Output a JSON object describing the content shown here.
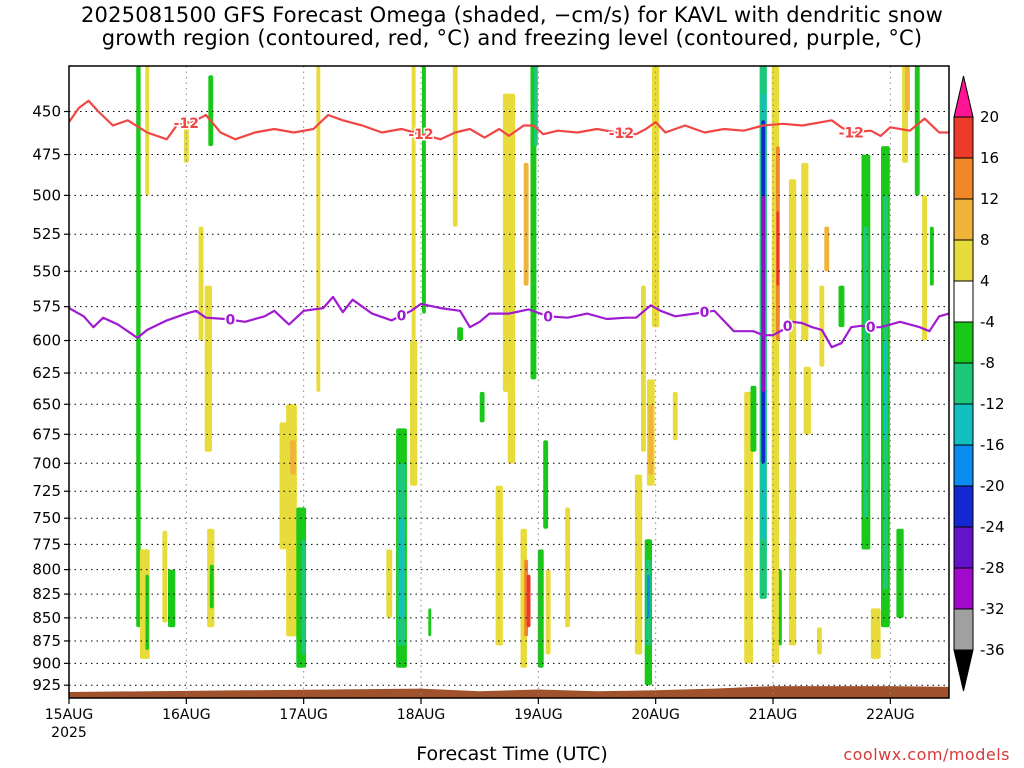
{
  "title": {
    "line1": "2025081500 GFS Forecast Omega (shaded, −cm/s) for KAVL with dendritic snow",
    "line2": "growth region (contoured, red, °C) and freezing level (contoured, purple, °C)"
  },
  "credit": "coolwx.com/models",
  "chart_data": {
    "type": "heatmap",
    "title": "2025081500 GFS Forecast Omega (shaded, −cm/s) for KAVL with dendritic snow growth region (contoured, red, °C) and freezing level (contoured, purple, °C)",
    "xlabel": "Forecast Time (UTC)",
    "ylabel": "",
    "y_scale": "log-pressure",
    "ylim": [
      940,
      425
    ],
    "y_ticks": [
      450,
      475,
      500,
      525,
      550,
      575,
      600,
      625,
      650,
      675,
      700,
      725,
      750,
      775,
      800,
      825,
      850,
      875,
      900,
      925
    ],
    "x_start_hour": 0,
    "x_end_hour": 180,
    "x_ticks": [
      {
        "hour": 0,
        "label": "15AUG",
        "sublabel": "2025"
      },
      {
        "hour": 24,
        "label": "16AUG"
      },
      {
        "hour": 48,
        "label": "17AUG"
      },
      {
        "hour": 72,
        "label": "18AUG"
      },
      {
        "hour": 96,
        "label": "19AUG"
      },
      {
        "hour": 120,
        "label": "20AUG"
      },
      {
        "hour": 144,
        "label": "21AUG"
      },
      {
        "hour": 168,
        "label": "22AUG"
      }
    ],
    "grid": true,
    "colorbar": {
      "levels": [
        20,
        16,
        12,
        8,
        4,
        -4,
        -8,
        -12,
        -16,
        -20,
        -24,
        -28,
        -32,
        -36
      ],
      "colors": [
        "#ff1493",
        "#ee3a2a",
        "#f0882a",
        "#f0b43a",
        "#e8dc3c",
        "#ffffff",
        "#19c819",
        "#1ec87a",
        "#13c0c0",
        "#0a8cf0",
        "#1428d2",
        "#6414c8",
        "#a00ac8",
        "#a0a0a0",
        "#000000"
      ]
    },
    "dendritic_contour": {
      "color": "#f04646",
      "value": -12,
      "label": "-12",
      "label_hours": [
        24,
        72,
        113,
        160
      ],
      "points": [
        [
          0,
          456
        ],
        [
          2,
          448
        ],
        [
          4,
          444
        ],
        [
          6,
          450
        ],
        [
          9,
          458
        ],
        [
          12,
          455
        ],
        [
          16,
          462
        ],
        [
          20,
          466
        ],
        [
          22,
          458
        ],
        [
          26,
          455
        ],
        [
          28,
          452
        ],
        [
          31,
          462
        ],
        [
          34,
          466
        ],
        [
          38,
          462
        ],
        [
          42,
          460
        ],
        [
          46,
          462
        ],
        [
          50,
          460
        ],
        [
          53,
          452
        ],
        [
          56,
          455
        ],
        [
          60,
          458
        ],
        [
          64,
          462
        ],
        [
          68,
          460
        ],
        [
          72,
          463
        ],
        [
          76,
          466
        ],
        [
          79,
          462
        ],
        [
          82,
          460
        ],
        [
          85,
          465
        ],
        [
          88,
          460
        ],
        [
          90,
          464
        ],
        [
          93,
          458
        ],
        [
          95,
          458
        ],
        [
          97,
          463
        ],
        [
          100,
          461
        ],
        [
          104,
          462
        ],
        [
          108,
          460
        ],
        [
          112,
          462
        ],
        [
          116,
          463
        ],
        [
          118,
          460
        ],
        [
          120,
          456
        ],
        [
          122,
          462
        ],
        [
          126,
          458
        ],
        [
          130,
          462
        ],
        [
          134,
          460
        ],
        [
          138,
          461
        ],
        [
          142,
          458
        ],
        [
          146,
          457
        ],
        [
          150,
          458
        ],
        [
          154,
          456
        ],
        [
          156,
          455
        ],
        [
          158,
          459
        ],
        [
          160,
          462
        ],
        [
          164,
          461
        ],
        [
          166,
          464
        ],
        [
          168,
          459
        ],
        [
          172,
          461
        ],
        [
          175,
          454
        ],
        [
          178,
          462
        ],
        [
          180,
          462
        ]
      ]
    },
    "freezing_contour": {
      "color": "#a01ad2",
      "value": 0,
      "label": "0",
      "label_hours": [
        33,
        68,
        98,
        130,
        147,
        164
      ],
      "points": [
        [
          0,
          576
        ],
        [
          3,
          582
        ],
        [
          5,
          590
        ],
        [
          7,
          583
        ],
        [
          10,
          588
        ],
        [
          14,
          598
        ],
        [
          16,
          592
        ],
        [
          20,
          585
        ],
        [
          24,
          580
        ],
        [
          26,
          578
        ],
        [
          28,
          583
        ],
        [
          32,
          584
        ],
        [
          36,
          586
        ],
        [
          40,
          582
        ],
        [
          42,
          578
        ],
        [
          45,
          588
        ],
        [
          48,
          578
        ],
        [
          52,
          576
        ],
        [
          54,
          568
        ],
        [
          56,
          579
        ],
        [
          58,
          570
        ],
        [
          62,
          580
        ],
        [
          66,
          585
        ],
        [
          70,
          578
        ],
        [
          72,
          573
        ],
        [
          76,
          576
        ],
        [
          80,
          578
        ],
        [
          82,
          590
        ],
        [
          84,
          586
        ],
        [
          86,
          580
        ],
        [
          90,
          580
        ],
        [
          94,
          577
        ],
        [
          98,
          582
        ],
        [
          102,
          583
        ],
        [
          106,
          580
        ],
        [
          110,
          584
        ],
        [
          114,
          583
        ],
        [
          116,
          583
        ],
        [
          119,
          574
        ],
        [
          121,
          578
        ],
        [
          124,
          582
        ],
        [
          128,
          580
        ],
        [
          132,
          578
        ],
        [
          136,
          593
        ],
        [
          140,
          593
        ],
        [
          142,
          596
        ],
        [
          144,
          596
        ],
        [
          146,
          592
        ],
        [
          148,
          586
        ],
        [
          150,
          587
        ],
        [
          152,
          590
        ],
        [
          154,
          592
        ],
        [
          156,
          605
        ],
        [
          158,
          602
        ],
        [
          160,
          590
        ],
        [
          162,
          589
        ],
        [
          164,
          590
        ],
        [
          166,
          590
        ],
        [
          170,
          586
        ],
        [
          174,
          590
        ],
        [
          176,
          593
        ],
        [
          178,
          582
        ],
        [
          180,
          580
        ]
      ]
    },
    "terrain": {
      "color": "#a0522d",
      "surface_hpa": [
        [
          0,
          933
        ],
        [
          36,
          931
        ],
        [
          72,
          929
        ],
        [
          84,
          932
        ],
        [
          96,
          930
        ],
        [
          108,
          932
        ],
        [
          120,
          931
        ],
        [
          132,
          929
        ],
        [
          144,
          926
        ],
        [
          168,
          926
        ],
        [
          180,
          927
        ]
      ]
    },
    "omega_cells": [
      {
        "h": 14.2,
        "dh": 0.9,
        "p1": 425,
        "p2": 860,
        "v": -6
      },
      {
        "h": 16.0,
        "dh": 0.8,
        "p1": 425,
        "p2": 500,
        "v": 4
      },
      {
        "h": 15.5,
        "dh": 2.0,
        "p1": 780,
        "p2": 895,
        "v": 4
      },
      {
        "h": 16.0,
        "dh": 0.7,
        "p1": 805,
        "p2": 885,
        "v": -6
      },
      {
        "h": 19.6,
        "dh": 1.0,
        "p1": 762,
        "p2": 855,
        "v": 4
      },
      {
        "h": 21.0,
        "dh": 1.5,
        "p1": 800,
        "p2": 860,
        "v": -6
      },
      {
        "h": 24.0,
        "dh": 1.0,
        "p1": 455,
        "p2": 480,
        "v": 4
      },
      {
        "h": 27.0,
        "dh": 1.0,
        "p1": 520,
        "p2": 600,
        "v": 4
      },
      {
        "h": 28.5,
        "dh": 1.5,
        "p1": 560,
        "p2": 690,
        "v": 4
      },
      {
        "h": 29.0,
        "dh": 1.0,
        "p1": 430,
        "p2": 470,
        "v": -6
      },
      {
        "h": 29.0,
        "dh": 1.5,
        "p1": 760,
        "p2": 860,
        "v": 4
      },
      {
        "h": 29.2,
        "dh": 0.8,
        "p1": 795,
        "p2": 840,
        "v": -6
      },
      {
        "h": 43.8,
        "dh": 1.5,
        "p1": 665,
        "p2": 780,
        "v": 4
      },
      {
        "h": 45.5,
        "dh": 2.2,
        "p1": 650,
        "p2": 870,
        "v": 4
      },
      {
        "h": 45.8,
        "dh": 1.2,
        "p1": 680,
        "p2": 710,
        "v": 8
      },
      {
        "h": 47.5,
        "dh": 2.0,
        "p1": 740,
        "p2": 905,
        "v": -6
      },
      {
        "h": 48.0,
        "dh": 0.8,
        "p1": 770,
        "p2": 890,
        "v": -10
      },
      {
        "h": 51.0,
        "dh": 0.8,
        "p1": 425,
        "p2": 640,
        "v": 4
      },
      {
        "h": 65.5,
        "dh": 1.2,
        "p1": 780,
        "p2": 850,
        "v": 4
      },
      {
        "h": 68.0,
        "dh": 2.2,
        "p1": 670,
        "p2": 905,
        "v": -6
      },
      {
        "h": 68.0,
        "dh": 1.6,
        "p1": 700,
        "p2": 880,
        "v": -12
      },
      {
        "h": 68.0,
        "dh": 0.8,
        "p1": 750,
        "p2": 850,
        "v": -16
      },
      {
        "h": 70.5,
        "dh": 1.5,
        "p1": 600,
        "p2": 720,
        "v": 4
      },
      {
        "h": 70.5,
        "dh": 0.8,
        "p1": 425,
        "p2": 600,
        "v": 4
      },
      {
        "h": 72.6,
        "dh": 0.8,
        "p1": 425,
        "p2": 580,
        "v": -6
      },
      {
        "h": 73.8,
        "dh": 0.6,
        "p1": 840,
        "p2": 870,
        "v": -6
      },
      {
        "h": 79.0,
        "dh": 1.0,
        "p1": 425,
        "p2": 520,
        "v": 4
      },
      {
        "h": 80.0,
        "dh": 1.2,
        "p1": 590,
        "p2": 600,
        "v": -6
      },
      {
        "h": 84.5,
        "dh": 1.0,
        "p1": 640,
        "p2": 665,
        "v": -6
      },
      {
        "h": 88.0,
        "dh": 1.5,
        "p1": 720,
        "p2": 880,
        "v": 4
      },
      {
        "h": 90.0,
        "dh": 2.5,
        "p1": 440,
        "p2": 640,
        "v": 4
      },
      {
        "h": 90.5,
        "dh": 1.5,
        "p1": 620,
        "p2": 700,
        "v": 4
      },
      {
        "h": 93.0,
        "dh": 1.3,
        "p1": 760,
        "p2": 905,
        "v": 4
      },
      {
        "h": 93.5,
        "dh": 1.0,
        "p1": 480,
        "p2": 560,
        "v": 8
      },
      {
        "h": 93.5,
        "dh": 0.8,
        "p1": 790,
        "p2": 870,
        "v": 12
      },
      {
        "h": 94.0,
        "dh": 0.8,
        "p1": 805,
        "p2": 860,
        "v": 16
      },
      {
        "h": 95.0,
        "dh": 1.2,
        "p1": 425,
        "p2": 630,
        "v": -6
      },
      {
        "h": 95.5,
        "dh": 0.8,
        "p1": 425,
        "p2": 470,
        "v": -10
      },
      {
        "h": 96.5,
        "dh": 1.2,
        "p1": 780,
        "p2": 905,
        "v": -6
      },
      {
        "h": 97.5,
        "dh": 1.0,
        "p1": 680,
        "p2": 760,
        "v": -6
      },
      {
        "h": 98.0,
        "dh": 1.0,
        "p1": 800,
        "p2": 890,
        "v": 4
      },
      {
        "h": 102.0,
        "dh": 1.0,
        "p1": 740,
        "p2": 860,
        "v": 4
      },
      {
        "h": 116.5,
        "dh": 1.5,
        "p1": 710,
        "p2": 890,
        "v": 4
      },
      {
        "h": 117.5,
        "dh": 1.0,
        "p1": 560,
        "p2": 690,
        "v": 4
      },
      {
        "h": 119.0,
        "dh": 1.6,
        "p1": 630,
        "p2": 720,
        "v": 4
      },
      {
        "h": 119.0,
        "dh": 1.0,
        "p1": 650,
        "p2": 710,
        "v": 8
      },
      {
        "h": 120.0,
        "dh": 1.5,
        "p1": 425,
        "p2": 590,
        "v": 4
      },
      {
        "h": 118.5,
        "dh": 1.5,
        "p1": 770,
        "p2": 925,
        "v": -6
      },
      {
        "h": 118.5,
        "dh": 1.0,
        "p1": 790,
        "p2": 880,
        "v": -12
      },
      {
        "h": 118.5,
        "dh": 0.6,
        "p1": 805,
        "p2": 850,
        "v": -20
      },
      {
        "h": 124.0,
        "dh": 1.0,
        "p1": 640,
        "p2": 680,
        "v": 4
      },
      {
        "h": 139.0,
        "dh": 1.8,
        "p1": 640,
        "p2": 900,
        "v": 4
      },
      {
        "h": 140.0,
        "dh": 1.2,
        "p1": 635,
        "p2": 690,
        "v": -6
      },
      {
        "h": 142.0,
        "dh": 1.5,
        "p1": 425,
        "p2": 830,
        "v": -12
      },
      {
        "h": 142.0,
        "dh": 1.0,
        "p1": 440,
        "p2": 770,
        "v": -16
      },
      {
        "h": 142.0,
        "dh": 0.8,
        "p1": 455,
        "p2": 700,
        "v": -24
      },
      {
        "h": 142.0,
        "dh": 0.7,
        "p1": 500,
        "p2": 640,
        "v": -32
      },
      {
        "h": 144.5,
        "dh": 1.5,
        "p1": 425,
        "p2": 900,
        "v": 4
      },
      {
        "h": 145.0,
        "dh": 0.8,
        "p1": 470,
        "p2": 600,
        "v": 12
      },
      {
        "h": 145.0,
        "dh": 0.6,
        "p1": 510,
        "p2": 560,
        "v": 16
      },
      {
        "h": 145.5,
        "dh": 0.6,
        "p1": 800,
        "p2": 880,
        "v": -6
      },
      {
        "h": 148.0,
        "dh": 1.5,
        "p1": 490,
        "p2": 880,
        "v": 4
      },
      {
        "h": 150.5,
        "dh": 1.5,
        "p1": 480,
        "p2": 600,
        "v": 4
      },
      {
        "h": 151.0,
        "dh": 1.5,
        "p1": 620,
        "p2": 675,
        "v": 4
      },
      {
        "h": 153.5,
        "dh": 1.0,
        "p1": 860,
        "p2": 890,
        "v": 4
      },
      {
        "h": 154.0,
        "dh": 1.0,
        "p1": 560,
        "p2": 620,
        "v": 4
      },
      {
        "h": 155.0,
        "dh": 1.0,
        "p1": 520,
        "p2": 550,
        "v": 8
      },
      {
        "h": 158.0,
        "dh": 1.2,
        "p1": 560,
        "p2": 590,
        "v": -6
      },
      {
        "h": 163.0,
        "dh": 1.8,
        "p1": 475,
        "p2": 780,
        "v": -6
      },
      {
        "h": 163.0,
        "dh": 1.0,
        "p1": 520,
        "p2": 750,
        "v": -10
      },
      {
        "h": 165.0,
        "dh": 2.0,
        "p1": 840,
        "p2": 895,
        "v": 4
      },
      {
        "h": 167.0,
        "dh": 1.8,
        "p1": 470,
        "p2": 860,
        "v": -6
      },
      {
        "h": 167.0,
        "dh": 1.0,
        "p1": 500,
        "p2": 820,
        "v": -12
      },
      {
        "h": 167.0,
        "dh": 0.6,
        "p1": 600,
        "p2": 680,
        "v": -16
      },
      {
        "h": 170.0,
        "dh": 1.5,
        "p1": 760,
        "p2": 850,
        "v": -6
      },
      {
        "h": 171.0,
        "dh": 1.2,
        "p1": 425,
        "p2": 480,
        "v": 4
      },
      {
        "h": 171.5,
        "dh": 1.0,
        "p1": 425,
        "p2": 450,
        "v": 8
      },
      {
        "h": 173.5,
        "dh": 1.0,
        "p1": 425,
        "p2": 500,
        "v": -6
      },
      {
        "h": 175.0,
        "dh": 1.0,
        "p1": 500,
        "p2": 600,
        "v": 4
      },
      {
        "h": 176.5,
        "dh": 0.8,
        "p1": 520,
        "p2": 560,
        "v": -6
      }
    ]
  }
}
